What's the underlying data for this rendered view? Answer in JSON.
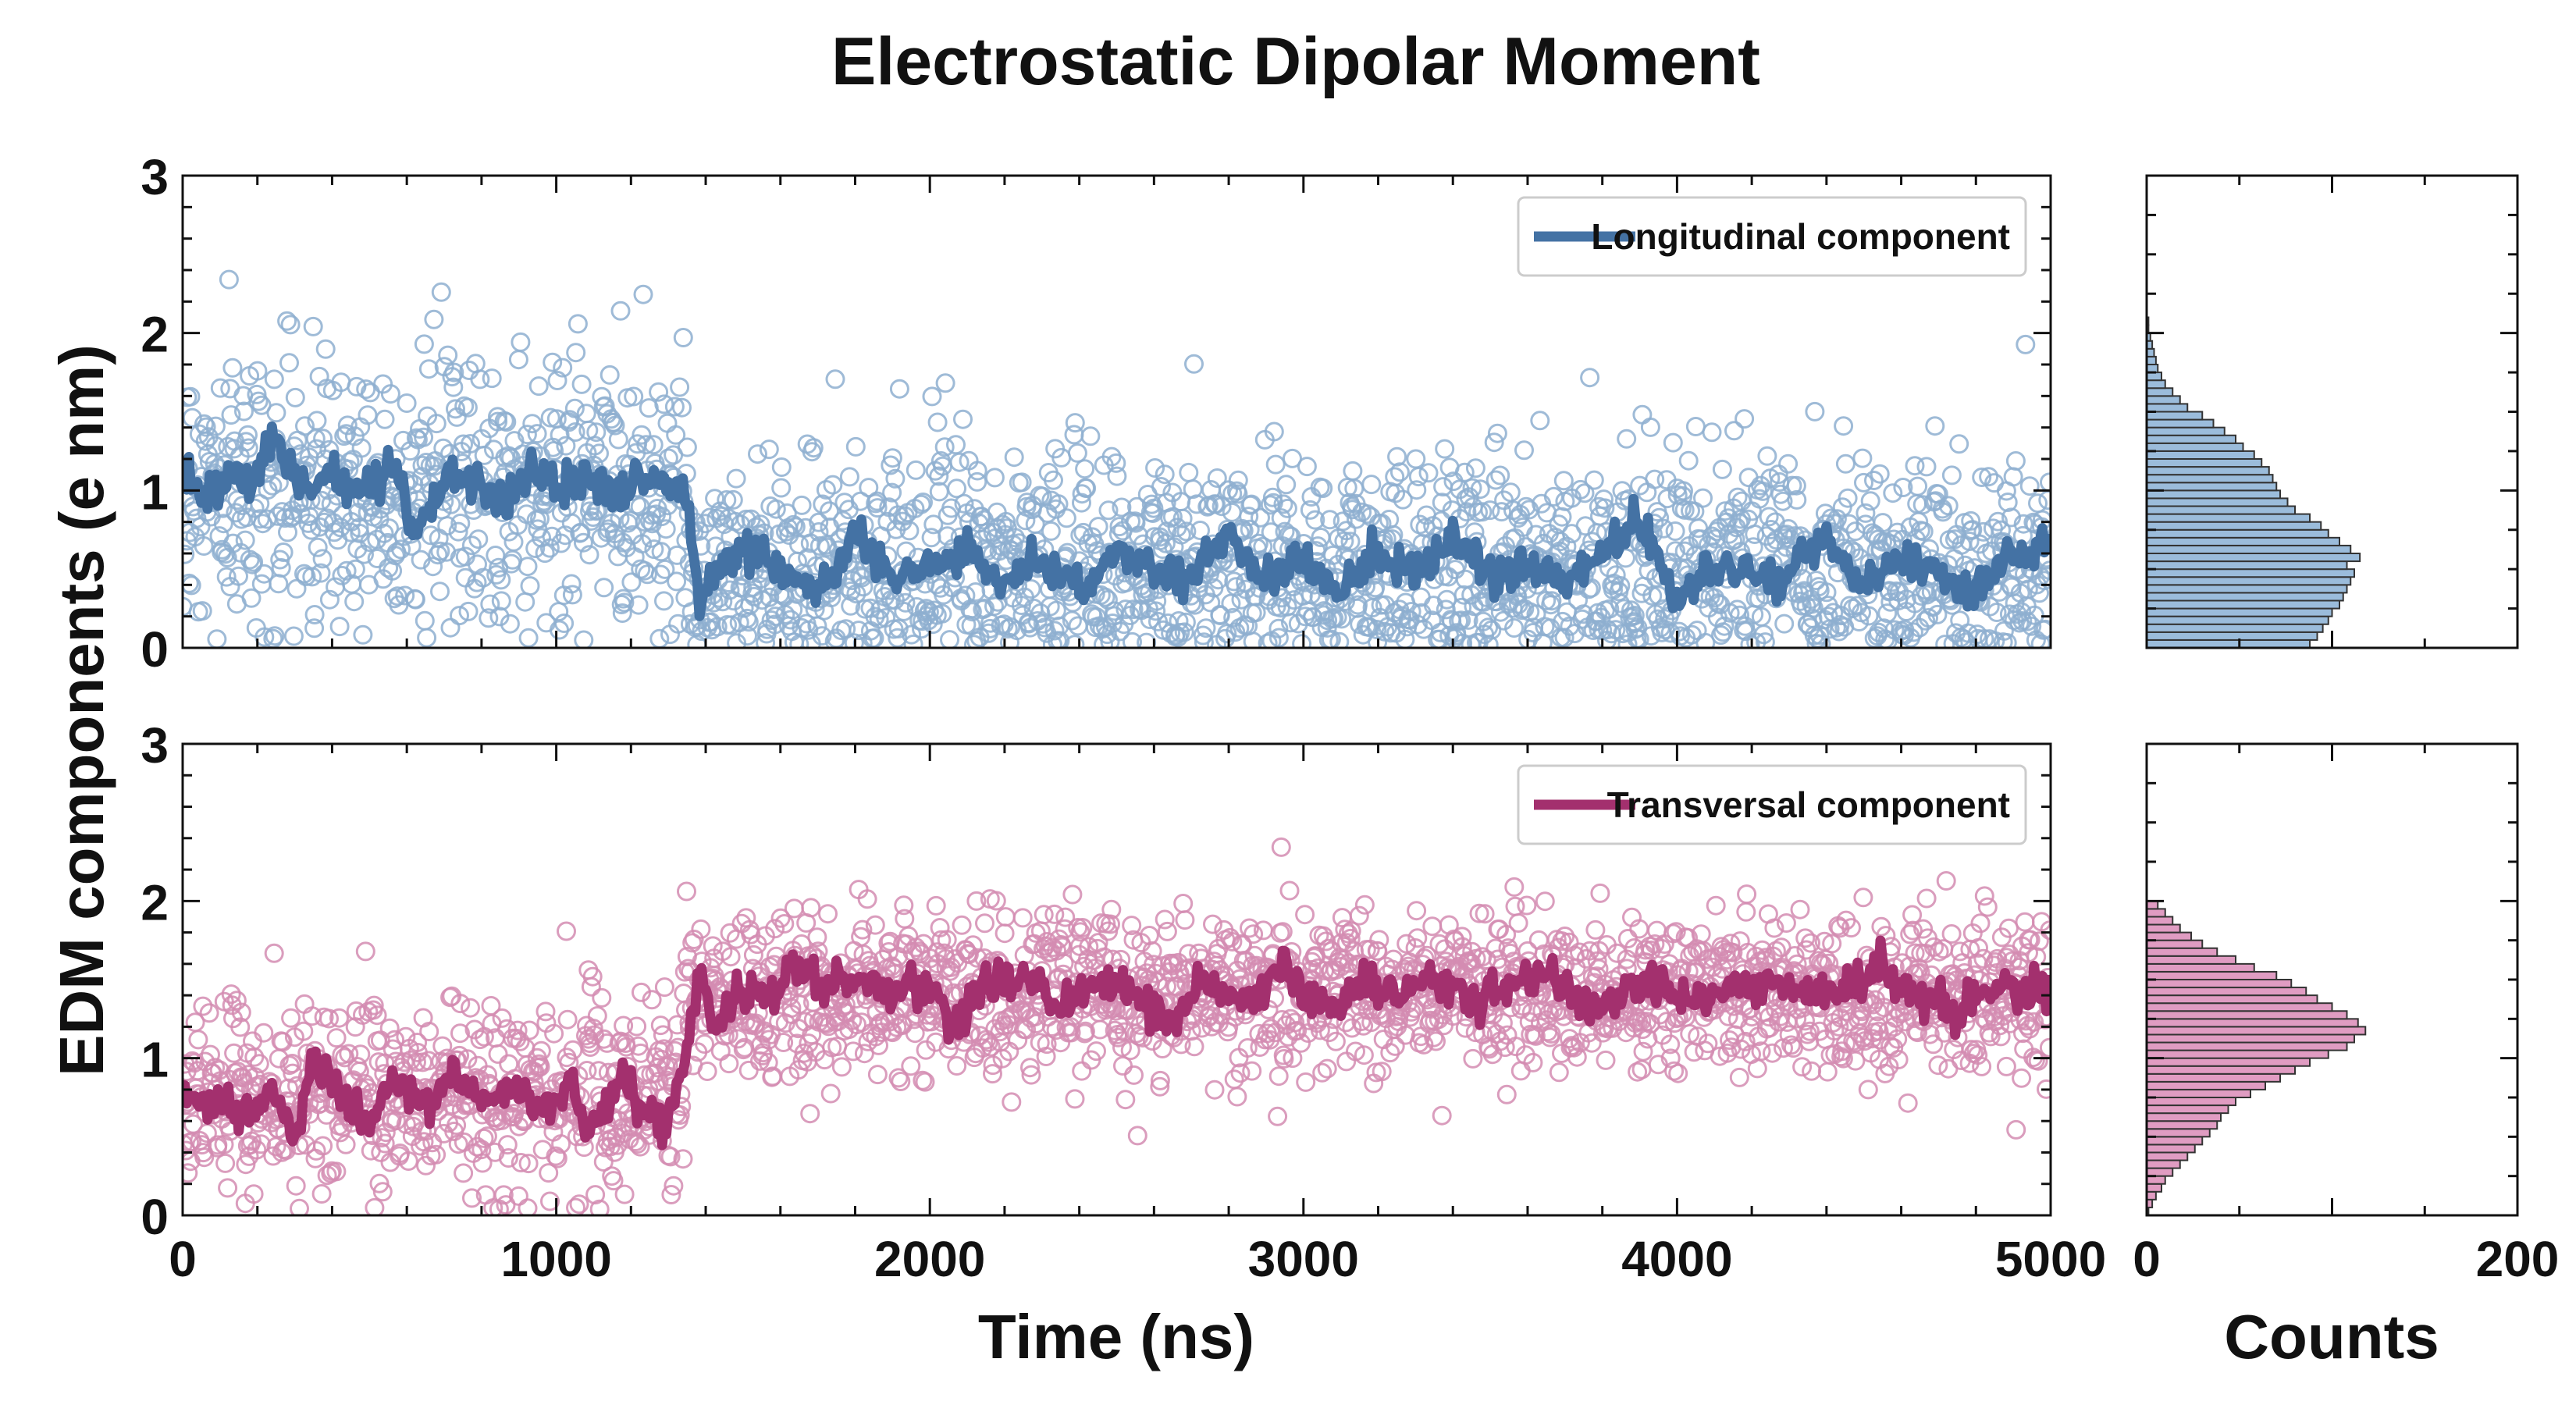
{
  "title": "Electrostatic Dipolar Moment",
  "ylabel": "EDM components (e nm)",
  "xlabel": "Time (ns)",
  "hist_xlabel": "Counts",
  "chart_data": [
    {
      "type": "line",
      "panel": "top",
      "legend_label": "Longitudinal component",
      "legend_placement": "top-right",
      "color": "#4472a4",
      "scatter_color": "#8eafd0",
      "xlim": [
        0,
        5000
      ],
      "ylim": [
        0,
        3
      ],
      "xticks": [
        0,
        1000,
        2000,
        3000,
        4000,
        5000
      ],
      "yticks": [
        0,
        1,
        2,
        3
      ],
      "segments": [
        {
          "t_start": 0,
          "t_end": 1340,
          "mean": 1.0,
          "line_sd": 0.12,
          "scatter_sd": 0.45
        },
        {
          "t_start": 1340,
          "t_end": 5000,
          "mean": 0.5,
          "line_sd": 0.14,
          "scatter_sd": 0.38
        }
      ],
      "line_points": [
        [
          0,
          1.1
        ],
        [
          60,
          0.95
        ],
        [
          120,
          1.05
        ],
        [
          180,
          1.0
        ],
        [
          250,
          1.35
        ],
        [
          320,
          1.0
        ],
        [
          400,
          1.1
        ],
        [
          480,
          0.95
        ],
        [
          560,
          1.2
        ],
        [
          620,
          0.7
        ],
        [
          700,
          1.1
        ],
        [
          780,
          1.05
        ],
        [
          860,
          0.9
        ],
        [
          940,
          1.15
        ],
        [
          1000,
          1.0
        ],
        [
          1080,
          1.1
        ],
        [
          1160,
          0.95
        ],
        [
          1240,
          1.1
        ],
        [
          1300,
          1.05
        ],
        [
          1340,
          1.1
        ],
        [
          1380,
          0.3
        ],
        [
          1450,
          0.55
        ],
        [
          1530,
          0.65
        ],
        [
          1600,
          0.5
        ],
        [
          1700,
          0.35
        ],
        [
          1800,
          0.7
        ],
        [
          1900,
          0.45
        ],
        [
          2000,
          0.5
        ],
        [
          2100,
          0.6
        ],
        [
          2200,
          0.4
        ],
        [
          2300,
          0.55
        ],
        [
          2400,
          0.35
        ],
        [
          2500,
          0.6
        ],
        [
          2600,
          0.5
        ],
        [
          2700,
          0.45
        ],
        [
          2800,
          0.7
        ],
        [
          2900,
          0.4
        ],
        [
          3000,
          0.55
        ],
        [
          3100,
          0.35
        ],
        [
          3200,
          0.6
        ],
        [
          3300,
          0.5
        ],
        [
          3400,
          0.7
        ],
        [
          3500,
          0.45
        ],
        [
          3600,
          0.55
        ],
        [
          3700,
          0.4
        ],
        [
          3800,
          0.6
        ],
        [
          3900,
          0.8
        ],
        [
          4000,
          0.3
        ],
        [
          4100,
          0.55
        ],
        [
          4200,
          0.45
        ],
        [
          4300,
          0.5
        ],
        [
          4400,
          0.7
        ],
        [
          4500,
          0.4
        ],
        [
          4600,
          0.6
        ],
        [
          4700,
          0.45
        ],
        [
          4800,
          0.35
        ],
        [
          4900,
          0.55
        ],
        [
          5000,
          0.65
        ]
      ],
      "histogram": {
        "xlim": [
          0,
          200
        ],
        "xticks": [
          0,
          200
        ],
        "bin_width": 0.05,
        "color": "#9bbcdb",
        "counts": [
          88,
          92,
          95,
          98,
          100,
          104,
          106,
          108,
          110,
          112,
          108,
          115,
          110,
          104,
          98,
          94,
          88,
          80,
          76,
          72,
          70,
          68,
          66,
          62,
          58,
          52,
          48,
          42,
          36,
          30,
          22,
          18,
          14,
          10,
          8,
          6,
          5,
          4,
          3,
          2,
          1,
          1
        ]
      }
    },
    {
      "type": "line",
      "panel": "bottom",
      "legend_label": "Transversal component",
      "legend_placement": "top-right",
      "color": "#a3306e",
      "scatter_color": "#d48cb2",
      "xlim": [
        0,
        5000
      ],
      "ylim": [
        0,
        3
      ],
      "xticks": [
        0,
        1000,
        2000,
        3000,
        4000,
        5000
      ],
      "yticks": [
        0,
        1,
        2,
        3
      ],
      "segments": [
        {
          "t_start": 0,
          "t_end": 1340,
          "mean": 0.75,
          "line_sd": 0.1,
          "scatter_sd": 0.3
        },
        {
          "t_start": 1340,
          "t_end": 5000,
          "mean": 1.4,
          "line_sd": 0.1,
          "scatter_sd": 0.25
        }
      ],
      "line_points": [
        [
          0,
          0.8
        ],
        [
          60,
          0.7
        ],
        [
          120,
          0.75
        ],
        [
          180,
          0.65
        ],
        [
          250,
          0.8
        ],
        [
          300,
          0.5
        ],
        [
          350,
          1.0
        ],
        [
          420,
          0.75
        ],
        [
          500,
          0.6
        ],
        [
          560,
          0.85
        ],
        [
          640,
          0.7
        ],
        [
          720,
          0.9
        ],
        [
          800,
          0.75
        ],
        [
          880,
          0.85
        ],
        [
          960,
          0.7
        ],
        [
          1040,
          0.8
        ],
        [
          1100,
          0.5
        ],
        [
          1160,
          0.85
        ],
        [
          1240,
          0.7
        ],
        [
          1300,
          0.6
        ],
        [
          1340,
          0.9
        ],
        [
          1380,
          1.55
        ],
        [
          1420,
          1.2
        ],
        [
          1480,
          1.45
        ],
        [
          1560,
          1.35
        ],
        [
          1640,
          1.55
        ],
        [
          1720,
          1.45
        ],
        [
          1800,
          1.5
        ],
        [
          1900,
          1.4
        ],
        [
          2000,
          1.5
        ],
        [
          2060,
          1.2
        ],
        [
          2150,
          1.45
        ],
        [
          2250,
          1.55
        ],
        [
          2350,
          1.3
        ],
        [
          2450,
          1.5
        ],
        [
          2550,
          1.4
        ],
        [
          2650,
          1.25
        ],
        [
          2750,
          1.5
        ],
        [
          2850,
          1.35
        ],
        [
          2950,
          1.6
        ],
        [
          3050,
          1.3
        ],
        [
          3150,
          1.45
        ],
        [
          3250,
          1.4
        ],
        [
          3350,
          1.5
        ],
        [
          3450,
          1.35
        ],
        [
          3550,
          1.45
        ],
        [
          3650,
          1.55
        ],
        [
          3750,
          1.3
        ],
        [
          3850,
          1.4
        ],
        [
          3950,
          1.5
        ],
        [
          4050,
          1.35
        ],
        [
          4150,
          1.45
        ],
        [
          4250,
          1.5
        ],
        [
          4350,
          1.4
        ],
        [
          4450,
          1.45
        ],
        [
          4550,
          1.55
        ],
        [
          4650,
          1.4
        ],
        [
          4750,
          1.3
        ],
        [
          4850,
          1.45
        ],
        [
          4950,
          1.4
        ],
        [
          5000,
          1.5
        ]
      ],
      "histogram": {
        "xlim": [
          0,
          200
        ],
        "xticks": [
          0,
          200
        ],
        "bin_width": 0.05,
        "color": "#e09cc2",
        "counts": [
          1,
          3,
          5,
          8,
          10,
          14,
          18,
          22,
          26,
          30,
          34,
          38,
          40,
          44,
          48,
          56,
          64,
          72,
          80,
          88,
          98,
          108,
          112,
          118,
          114,
          108,
          100,
          92,
          86,
          78,
          70,
          58,
          48,
          38,
          30,
          24,
          18,
          14,
          10,
          6
        ]
      }
    }
  ]
}
